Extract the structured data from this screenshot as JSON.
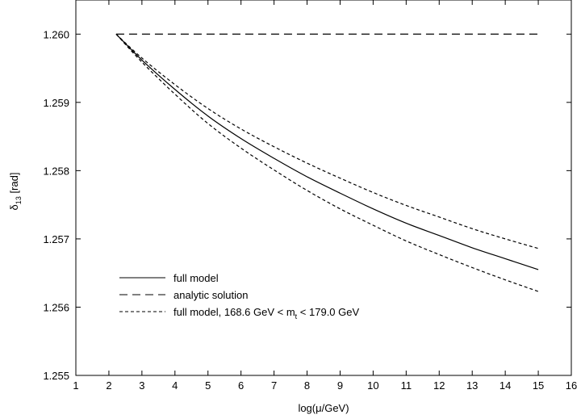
{
  "chart_data": {
    "type": "line",
    "xlabel": "log(μ/GeV)",
    "ylabel": "δ13 [rad]",
    "ylabel_main": "δ",
    "ylabel_sub": "13",
    "ylabel_unit": " [rad]",
    "xlim": [
      1,
      16
    ],
    "ylim": [
      1.255,
      1.2605
    ],
    "x_ticks": [
      1,
      2,
      3,
      4,
      5,
      6,
      7,
      8,
      9,
      10,
      11,
      12,
      13,
      14,
      15,
      16
    ],
    "x_tick_labels": [
      "1",
      "2",
      "3",
      "4",
      "5",
      "6",
      "7",
      "8",
      "9",
      "10",
      "11",
      "12",
      "13",
      "14",
      "15",
      "16"
    ],
    "y_ticks": [
      1.255,
      1.256,
      1.257,
      1.258,
      1.259,
      1.26
    ],
    "y_tick_labels": [
      "1.255",
      "1.256",
      "1.257",
      "1.258",
      "1.259",
      "1.260"
    ],
    "grid": false,
    "legend_position": "bottom-left",
    "series": [
      {
        "name": "full model",
        "style": "solid",
        "color": "#000000",
        "x": [
          2.22,
          3,
          4,
          5,
          6,
          7,
          8,
          9,
          10,
          11,
          12,
          13,
          14,
          15
        ],
        "y": [
          1.26,
          1.25962,
          1.25919,
          1.2588,
          1.25847,
          1.25818,
          1.25791,
          1.25767,
          1.25744,
          1.25723,
          1.25705,
          1.25687,
          1.25671,
          1.25655
        ]
      },
      {
        "name": "analytic solution",
        "style": "long-dash",
        "color": "#000000",
        "x": [
          2.22,
          15
        ],
        "y": [
          1.26,
          1.26
        ]
      },
      {
        "name_main": "full model, 168.6 GeV < m",
        "name_sub": "t",
        "name_end": " < 179.0 GeV",
        "style": "short-dash",
        "color": "#000000",
        "x": [
          2.22,
          3,
          4,
          5,
          6,
          7,
          8,
          9,
          10,
          11,
          12,
          13,
          14,
          15
        ],
        "y": [
          1.26,
          1.25965,
          1.25926,
          1.25891,
          1.25861,
          1.25835,
          1.25811,
          1.25789,
          1.25768,
          1.25749,
          1.25732,
          1.25715,
          1.257,
          1.25686
        ]
      },
      {
        "style": "short-dash",
        "color": "#000000",
        "x": [
          2.22,
          3,
          4,
          5,
          6,
          7,
          8,
          9,
          10,
          11,
          12,
          13,
          14,
          15
        ],
        "y": [
          1.26,
          1.25959,
          1.25912,
          1.25869,
          1.25833,
          1.25801,
          1.25771,
          1.25744,
          1.2572,
          1.25697,
          1.25677,
          1.25658,
          1.2564,
          1.25623
        ]
      }
    ]
  }
}
